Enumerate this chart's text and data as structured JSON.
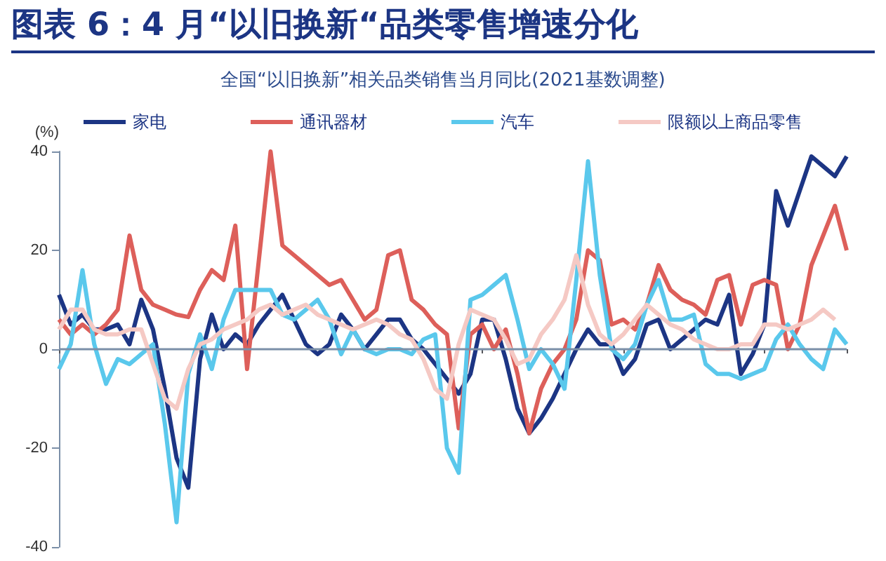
{
  "chart_data": {
    "type": "line",
    "title": "图表 6：4 月“以旧换新“品类零售增速分化",
    "subtitle": "全国“以旧换新”相关品类销售当月同比(2021基数调整)",
    "ylabel": "(%)",
    "categories": [
      null,
      null,
      null,
      null,
      null,
      null,
      null,
      null,
      null,
      null,
      null,
      null,
      null,
      null,
      null,
      null,
      null,
      null,
      null,
      null,
      null,
      null,
      null,
      null,
      null,
      null,
      null,
      null,
      null,
      null,
      null,
      null,
      null,
      null,
      null,
      null,
      null,
      null,
      null,
      null,
      null,
      null,
      null,
      null,
      null,
      null,
      null,
      null,
      null,
      null,
      null,
      null,
      null,
      null,
      null,
      null,
      null,
      null,
      null,
      null,
      null,
      null,
      null,
      null,
      null,
      null,
      null,
      null
    ],
    "series": [
      {
        "name": "家电",
        "color": "#1c3584",
        "values": [
          11,
          5,
          7,
          4,
          4,
          5,
          1,
          10,
          4,
          -8,
          -22,
          -28,
          -2,
          7,
          0,
          3,
          1,
          5,
          8,
          11,
          6,
          1,
          -1,
          1,
          7,
          4,
          0,
          3,
          6,
          6,
          2,
          0,
          -3,
          -6,
          -9,
          -5,
          6,
          6,
          -2,
          -12,
          -17,
          -14,
          -10,
          -5,
          0,
          4,
          1,
          1,
          -5,
          -2,
          5,
          6,
          0,
          2,
          4,
          6,
          5,
          11,
          -5,
          -1,
          5,
          32,
          25,
          32,
          39,
          37,
          35,
          39
        ]
      },
      {
        "name": "通讯器材",
        "color": "#dd5f5a",
        "values": [
          6,
          3,
          5,
          3,
          5,
          8,
          23,
          12,
          9,
          8,
          7,
          6.5,
          12,
          16,
          14,
          25,
          -4,
          18,
          40,
          21,
          19,
          17,
          15,
          13,
          14,
          10,
          6,
          8,
          19,
          20,
          10,
          8,
          5,
          3,
          -16,
          3,
          5,
          0,
          4,
          -5,
          -17,
          -8,
          -3,
          0,
          6,
          20,
          18,
          5,
          6,
          4,
          9,
          17,
          12,
          10,
          9,
          7,
          14,
          15,
          5,
          13,
          14,
          13,
          0,
          5,
          17,
          23,
          29,
          20
        ]
      },
      {
        "name": "汽车",
        "color": "#5ac8ec",
        "values": [
          -4,
          1,
          16,
          1,
          -7,
          -2,
          -3,
          -1,
          1,
          -15,
          -35,
          -5,
          3,
          -4,
          6,
          12,
          12,
          12,
          12,
          7,
          6,
          8,
          10,
          6,
          -1,
          4,
          0,
          -1,
          0,
          0,
          -1,
          2,
          3,
          -20,
          -25,
          10,
          11,
          13,
          15,
          6,
          -4,
          0,
          -3,
          -8,
          14,
          38,
          15,
          0,
          -2,
          1,
          9,
          14,
          6,
          6,
          7,
          -3,
          -5,
          -5,
          -6,
          -5,
          -4,
          2,
          5,
          1,
          -2,
          -4,
          4,
          1
        ]
      },
      {
        "name": "限额以上商品零售",
        "color": "#f5c9c4",
        "values": [
          4,
          8,
          8,
          4,
          3,
          3,
          4,
          4,
          -3,
          -10,
          -12,
          -4,
          1,
          2,
          4,
          5,
          6,
          8,
          9,
          7,
          8,
          9,
          7,
          6,
          5,
          4,
          5,
          6,
          5,
          3,
          2,
          -2,
          -8,
          -10,
          1,
          8,
          7,
          6,
          2,
          -3,
          -2,
          3,
          6,
          10,
          19,
          9,
          3,
          1,
          3,
          6,
          9,
          7,
          5,
          4,
          2,
          1,
          0,
          0,
          1,
          1,
          5,
          5,
          4,
          5,
          6,
          8,
          6,
          null
        ]
      }
    ],
    "ylim": [
      -40,
      40
    ],
    "yticks": [
      -40,
      -20,
      0,
      20,
      40
    ],
    "legend": "top",
    "tick_labels": "y",
    "line_style": "solid",
    "ref_lines": [
      {
        "axis": "y",
        "value": 0,
        "color": "#7b8fa8"
      }
    ]
  }
}
